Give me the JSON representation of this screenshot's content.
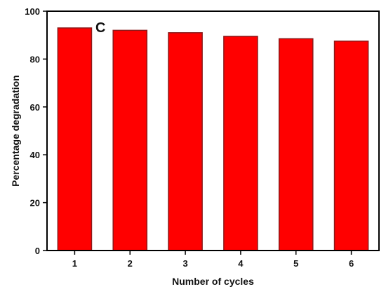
{
  "chart_data": {
    "type": "bar",
    "panel_label": "C",
    "categories": [
      "1",
      "2",
      "3",
      "4",
      "5",
      "6"
    ],
    "values": [
      93,
      92,
      91,
      89.5,
      88.5,
      87.5
    ],
    "xlabel": "Number of cycles",
    "ylabel": "Percentage degradation",
    "ylim": [
      0,
      100
    ],
    "yticks": [
      0,
      20,
      40,
      60,
      80,
      100
    ],
    "grid": false,
    "bar_color": "#ff0000",
    "bar_edge_color": "#8b1a1a"
  }
}
